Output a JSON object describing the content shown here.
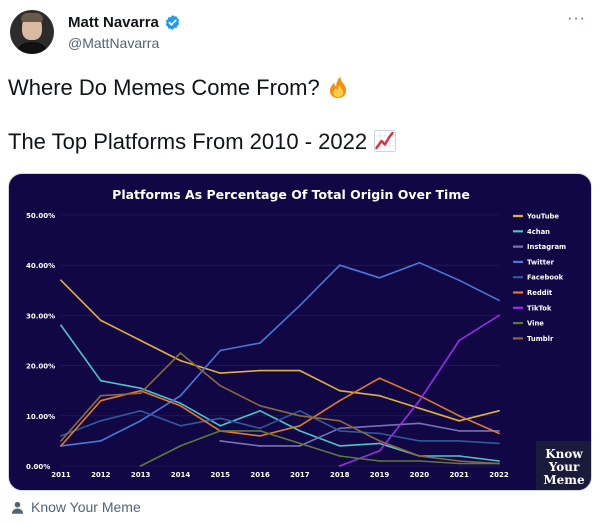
{
  "author": {
    "name": "Matt Navarra",
    "handle": "@MattNavarra"
  },
  "more_menu": "···",
  "tweet": {
    "line1": "Where Do Memes Come From? ",
    "emoji1": "fire-emoji",
    "line2": "The Top Platforms From 2010 - 2022 ",
    "emoji2": "chart-increasing-emoji"
  },
  "attribution": "Know Your Meme",
  "watermark": [
    "Know",
    "Your",
    "Meme"
  ],
  "colors": {
    "bg": "#100744",
    "verified": "#1d9bf0"
  },
  "chart_data": {
    "type": "line",
    "title": "Platforms As Percentage Of Total Origin Over Time",
    "x": [
      "2011",
      "2012",
      "2013",
      "2014",
      "2015",
      "2016",
      "2017",
      "2018",
      "2019",
      "2020",
      "2021",
      "2022"
    ],
    "ylim": [
      0,
      50
    ],
    "yticks": [
      "0.00%",
      "10.00%",
      "20.00%",
      "30.00%",
      "40.00%",
      "50.00%"
    ],
    "ytick_values": [
      0,
      10,
      20,
      30,
      40,
      50
    ],
    "legend_position": "right",
    "series": [
      {
        "name": "YouTube",
        "color": "#e0b040",
        "values": [
          37,
          29,
          25,
          21,
          18.5,
          19,
          19,
          15,
          14,
          11.5,
          9,
          11
        ]
      },
      {
        "name": "4chan",
        "color": "#4fc3c8",
        "values": [
          28,
          17,
          15.5,
          12.5,
          8,
          11,
          7,
          4,
          4.5,
          2,
          2,
          1
        ]
      },
      {
        "name": "Instagram",
        "color": "#7a70b8",
        "values": [
          null,
          null,
          null,
          null,
          5,
          4,
          4,
          7.5,
          8,
          8.5,
          7,
          7
        ]
      },
      {
        "name": "Twitter",
        "color": "#4a78d8",
        "values": [
          4,
          5,
          9,
          14,
          23,
          24.5,
          32,
          40,
          37.5,
          40.5,
          37,
          33
        ]
      },
      {
        "name": "Facebook",
        "color": "#2f5aa0",
        "values": [
          6,
          9,
          11,
          8,
          9.5,
          7.5,
          11,
          7,
          6.5,
          5,
          5,
          4.5
        ]
      },
      {
        "name": "Reddit",
        "color": "#e07a30",
        "values": [
          4,
          13,
          15,
          12,
          7,
          6,
          8,
          13,
          17.5,
          14,
          10,
          6.5
        ]
      },
      {
        "name": "TikTok",
        "color": "#9a2ee8",
        "values": [
          null,
          null,
          null,
          null,
          null,
          null,
          null,
          0,
          3,
          13,
          25,
          30
        ]
      },
      {
        "name": "Vine",
        "color": "#5d7a3a",
        "values": [
          null,
          null,
          0,
          4,
          7,
          7,
          4.5,
          2,
          1,
          1,
          0.5,
          0.5
        ]
      },
      {
        "name": "Tumblr",
        "color": "#8a6a3a",
        "values": [
          5,
          14,
          14.5,
          22.5,
          16,
          12,
          10,
          9,
          5,
          2,
          1,
          0.5
        ]
      }
    ]
  }
}
